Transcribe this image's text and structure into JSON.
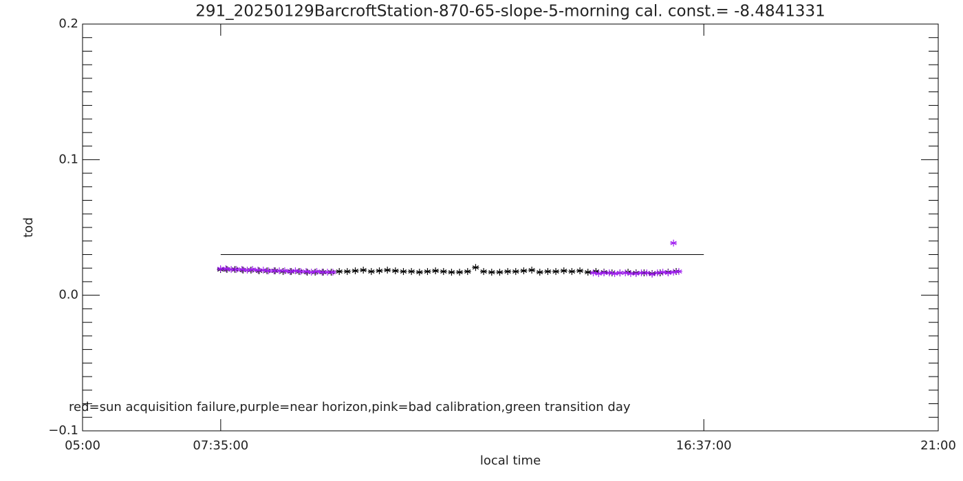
{
  "chart_data": {
    "type": "scatter",
    "title": "291_20250129BarcroftStation-870-65-slope-5-morning cal. const.= -8.4841331",
    "x_label": "local time",
    "y_label": "tod",
    "annotation": "red=sun acquisition failure,purple=near horizon,pink=bad calibration,green transition day",
    "xlim": [
      5,
      21
    ],
    "ylim": [
      -0.1,
      0.2
    ],
    "xticks": [
      {
        "value": 5,
        "label": "05:00"
      },
      {
        "value": 7.5833,
        "label": "07:35:00"
      },
      {
        "value": 16.6167,
        "label": "16:37:00"
      },
      {
        "value": 21,
        "label": "21:00"
      }
    ],
    "yticks": [
      {
        "value": -0.1,
        "label": "−0.1"
      },
      {
        "value": 0,
        "label": "0.0"
      },
      0.1,
      0.2
    ],
    "yminorticks": [
      -0.09,
      -0.08,
      -0.07,
      -0.06,
      -0.05,
      -0.04,
      -0.03,
      -0.02,
      -0.01,
      0.01,
      0.02,
      0.03,
      0.04,
      0.05,
      0.06,
      0.07,
      0.08,
      0.09,
      0.11,
      0.12,
      0.13,
      0.14,
      0.15,
      0.16,
      0.17,
      0.18,
      0.19
    ],
    "reference_line": {
      "x": [
        7.5833,
        16.6167
      ],
      "y": 0.03,
      "color": "#000000"
    },
    "series": [
      {
        "color": "#000000",
        "x": [
          7.58,
          7.7,
          7.85,
          8.0,
          8.15,
          8.3,
          8.45,
          8.6,
          8.75,
          8.9,
          9.05,
          9.2,
          9.35,
          9.5,
          9.65,
          9.8,
          9.95,
          10.1,
          10.25,
          10.4,
          10.55,
          10.7,
          10.85,
          11.0,
          11.15,
          11.3,
          11.45,
          11.6,
          11.75,
          11.9,
          12.05,
          12.2,
          12.35,
          12.5,
          12.65,
          12.8,
          12.95,
          13.1,
          13.25,
          13.4,
          13.55,
          13.7,
          13.85,
          14.0,
          14.15,
          14.3,
          14.45,
          14.6,
          14.75,
          14.9,
          15.05,
          15.2,
          15.35,
          15.5,
          15.65,
          15.8,
          15.95,
          16.1
        ],
        "values": [
          0.019,
          0.019,
          0.019,
          0.0185,
          0.0185,
          0.018,
          0.018,
          0.018,
          0.0175,
          0.0175,
          0.0175,
          0.017,
          0.017,
          0.017,
          0.017,
          0.0175,
          0.0175,
          0.018,
          0.0185,
          0.0175,
          0.018,
          0.0185,
          0.018,
          0.0175,
          0.0175,
          0.017,
          0.0175,
          0.018,
          0.0175,
          0.017,
          0.017,
          0.0175,
          0.0205,
          0.0175,
          0.017,
          0.017,
          0.0175,
          0.0175,
          0.018,
          0.0185,
          0.017,
          0.0175,
          0.0175,
          0.018,
          0.0175,
          0.018,
          0.017,
          0.0175,
          0.017,
          0.0165,
          0.0165,
          0.017,
          0.0165,
          0.0165,
          0.016,
          0.0165,
          0.017,
          0.0175
        ]
      },
      {
        "color": "#a020f0",
        "x": [
          7.58,
          7.68,
          7.78,
          7.88,
          7.98,
          8.08,
          8.18,
          8.28,
          8.38,
          8.48,
          8.58,
          8.68,
          8.78,
          8.88,
          8.98,
          9.08,
          9.18,
          9.28,
          9.38,
          9.48,
          9.58,
          9.68,
          14.55,
          14.65,
          14.75,
          14.85,
          14.95,
          15.05,
          15.15,
          15.25,
          15.35,
          15.45,
          15.55,
          15.65,
          15.75,
          15.85,
          15.95,
          16.05,
          16.15,
          16.05
        ],
        "values": [
          0.0195,
          0.0195,
          0.019,
          0.019,
          0.019,
          0.0185,
          0.019,
          0.0185,
          0.0185,
          0.018,
          0.018,
          0.018,
          0.018,
          0.0175,
          0.018,
          0.0175,
          0.0175,
          0.017,
          0.0175,
          0.017,
          0.017,
          0.017,
          0.0165,
          0.016,
          0.0165,
          0.0165,
          0.016,
          0.0165,
          0.0165,
          0.016,
          0.016,
          0.0165,
          0.0165,
          0.0155,
          0.0165,
          0.017,
          0.0165,
          0.017,
          0.0175,
          0.0385
        ]
      }
    ]
  }
}
